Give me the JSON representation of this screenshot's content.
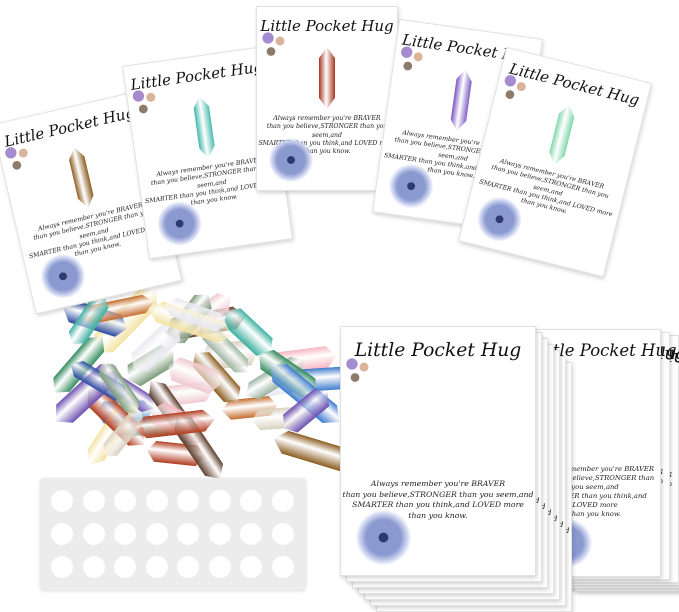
{
  "card": {
    "title": "Little Pocket Hug",
    "message_lines": [
      "Always remember you're BRAVER",
      "than you believe,STRONGER than you seem,and",
      "SMARTER than you think,and LOVED more",
      "than you know."
    ]
  },
  "top_cards": [
    {
      "crystal": "tiger eye",
      "color": "#8a5a1c"
    },
    {
      "crystal": "turquoise",
      "color": "#3fb8a8"
    },
    {
      "crystal": "red jasper",
      "color": "#a8341e"
    },
    {
      "crystal": "amethyst",
      "color": "#7a55c0"
    },
    {
      "crystal": "green aventurine",
      "color": "#7fd6a8"
    }
  ],
  "stone_colors": [
    "#f0c8cf",
    "#5a3a28",
    "#2e8a5a",
    "#3a7acc",
    "#f2e2a0",
    "#b03a1e",
    "#d9d0c0",
    "#6b4fb0",
    "#7c9c7a",
    "#e8e8f0",
    "#c46a2a",
    "#2a4aa0",
    "#f5b5c0",
    "#9ab4a0",
    "#3cb0a0",
    "#8a5a1c"
  ]
}
